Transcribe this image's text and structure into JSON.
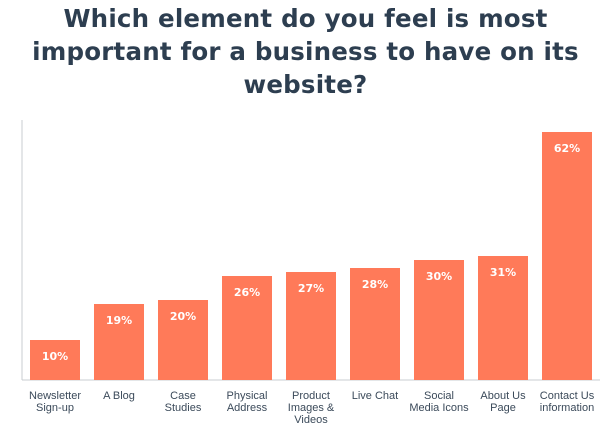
{
  "title_lines": [
    "Which element do you feel is most",
    "important for a business to have on its",
    "website?"
  ],
  "colors": {
    "bar": "#ff7a59",
    "title": "#2d3e50",
    "axis": "#c8ccd0",
    "label_inside": "#ffffff",
    "label_outside": "#2d3e50"
  },
  "chart_data": {
    "type": "bar",
    "title": "Which element do you feel is most important for a business to have on its website?",
    "xlabel": "",
    "ylabel": "",
    "ylim": [
      0,
      70
    ],
    "grid": false,
    "categories": [
      [
        "Newsletter",
        "Sign-up"
      ],
      [
        "A Blog"
      ],
      [
        "Case",
        "Studies"
      ],
      [
        "Physical",
        "Address"
      ],
      [
        "Product",
        "Images &",
        "Videos"
      ],
      [
        "Live Chat"
      ],
      [
        "Social",
        "Media Icons"
      ],
      [
        "About Us",
        "Page"
      ],
      [
        "Contact Us",
        "information"
      ]
    ],
    "values": [
      10,
      19,
      20,
      26,
      27,
      28,
      30,
      31,
      62
    ],
    "value_labels": [
      "10%",
      "19%",
      "20%",
      "26%",
      "27%",
      "28%",
      "30%",
      "31%",
      "62%"
    ]
  }
}
